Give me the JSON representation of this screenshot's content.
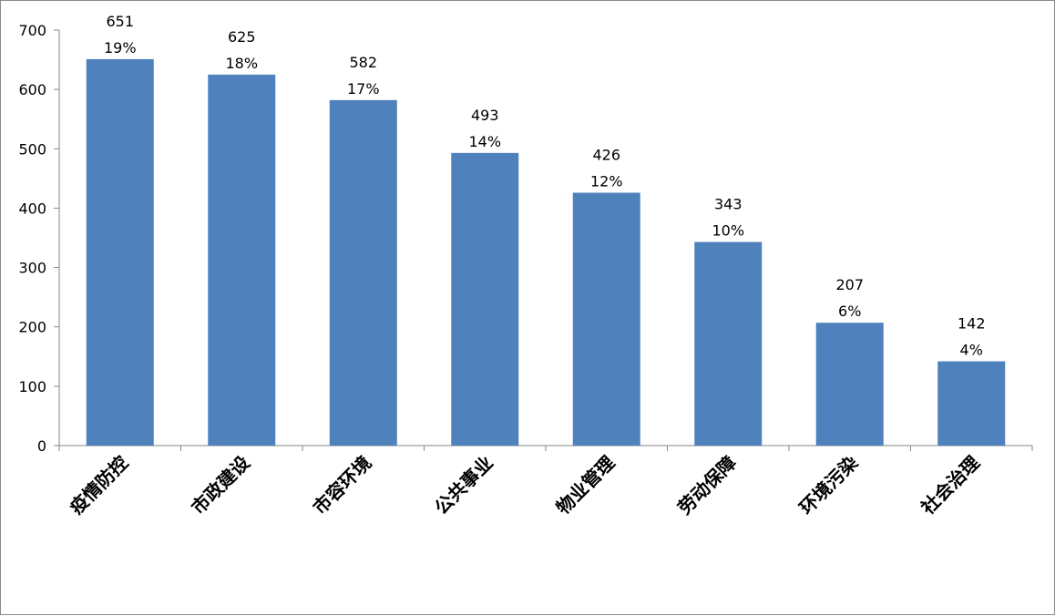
{
  "chart_data": {
    "type": "bar",
    "categories": [
      "疫情防控",
      "市政建设",
      "市容环境",
      "公共事业",
      "物业管理",
      "劳动保障",
      "环境污染",
      "社会治理"
    ],
    "series": [
      {
        "values": [
          651,
          625,
          582,
          493,
          426,
          343,
          207,
          142
        ]
      }
    ],
    "percent_labels": [
      "19%",
      "18%",
      "17%",
      "14%",
      "12%",
      "10%",
      "6%",
      "4%"
    ],
    "ylim": [
      0,
      700
    ],
    "yticks": [
      0,
      100,
      200,
      300,
      400,
      500,
      600,
      700
    ],
    "bar_color": "#4F81BD",
    "grid": false,
    "legend": "none",
    "title": "",
    "xlabel": "",
    "ylabel": ""
  }
}
